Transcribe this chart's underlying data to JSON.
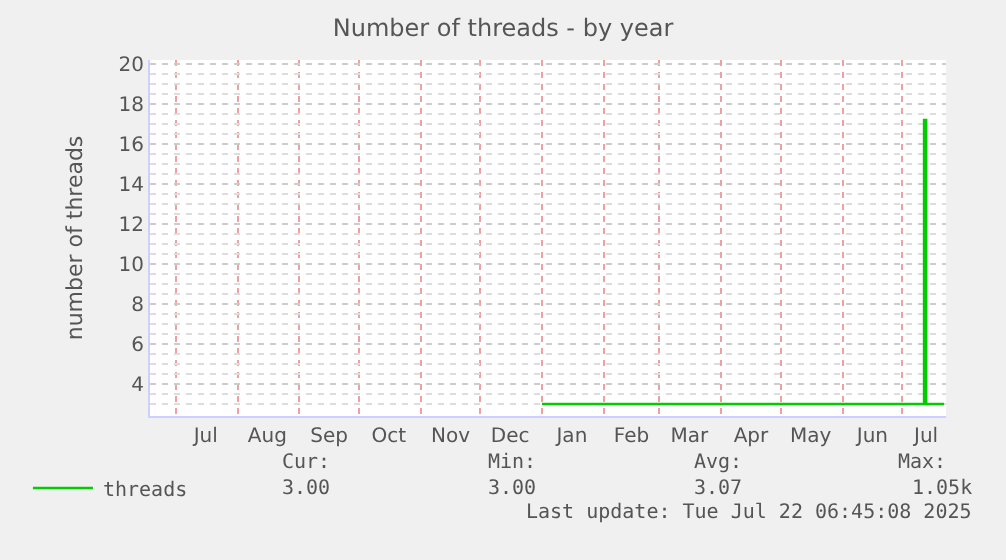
{
  "chart_data": {
    "type": "step",
    "title": "Number of threads - by year",
    "ylabel": "number of threads",
    "x": [
      "2025-01-01",
      "2025-07-12",
      "2025-07-13",
      "2025-07-22"
    ],
    "series": [
      {
        "name": "threads",
        "color": "#00cc00",
        "values": [
          3,
          17.2,
          3,
          3
        ]
      }
    ],
    "xlim": [
      "2024-06-18",
      "2025-07-23"
    ],
    "xticks": [
      {
        "value": "2024-07-01",
        "label": null
      },
      {
        "value": "2024-07-16",
        "label": "Jul"
      },
      {
        "value": "2024-08-01",
        "label": null
      },
      {
        "value": "2024-08-16",
        "label": "Aug"
      },
      {
        "value": "2024-09-01",
        "label": null
      },
      {
        "value": "2024-09-16",
        "label": "Sep"
      },
      {
        "value": "2024-10-01",
        "label": null
      },
      {
        "value": "2024-10-16",
        "label": "Oct"
      },
      {
        "value": "2024-11-01",
        "label": null
      },
      {
        "value": "2024-11-16",
        "label": "Nov"
      },
      {
        "value": "2024-12-01",
        "label": null
      },
      {
        "value": "2024-12-16",
        "label": "Dec"
      },
      {
        "value": "2025-01-01",
        "label": null
      },
      {
        "value": "2025-01-16",
        "label": "Jan"
      },
      {
        "value": "2025-02-01",
        "label": null
      },
      {
        "value": "2025-02-15",
        "label": "Feb"
      },
      {
        "value": "2025-03-01",
        "label": null
      },
      {
        "value": "2025-03-16",
        "label": "Mar"
      },
      {
        "value": "2025-04-01",
        "label": null
      },
      {
        "value": "2025-04-16",
        "label": "Apr"
      },
      {
        "value": "2025-05-01",
        "label": null
      },
      {
        "value": "2025-05-16",
        "label": "May"
      },
      {
        "value": "2025-06-01",
        "label": null
      },
      {
        "value": "2025-06-16",
        "label": "Jun"
      },
      {
        "value": "2025-07-01",
        "label": null
      },
      {
        "value": "2025-07-13",
        "label": "Jul"
      }
    ],
    "ylim": [
      2.4,
      20.2
    ],
    "yticks": [
      {
        "value": 2.5,
        "label": null
      },
      {
        "value": 3,
        "label": null
      },
      {
        "value": 3.5,
        "label": null
      },
      4,
      {
        "value": 4.5,
        "label": null
      },
      {
        "value": 5,
        "label": null
      },
      {
        "value": 5.5,
        "label": null
      },
      6,
      {
        "value": 6.5,
        "label": null
      },
      {
        "value": 7,
        "label": null
      },
      {
        "value": 7.5,
        "label": null
      },
      8,
      {
        "value": 8.5,
        "label": null
      },
      {
        "value": 9,
        "label": null
      },
      {
        "value": 9.5,
        "label": null
      },
      10,
      {
        "value": 10.5,
        "label": null
      },
      {
        "value": 11,
        "label": null
      },
      {
        "value": 11.5,
        "label": null
      },
      12,
      {
        "value": 12.5,
        "label": null
      },
      {
        "value": 13,
        "label": null
      },
      {
        "value": 13.5,
        "label": null
      },
      14,
      {
        "value": 14.5,
        "label": null
      },
      {
        "value": 15,
        "label": null
      },
      {
        "value": 15.5,
        "label": null
      },
      16,
      {
        "value": 16.5,
        "label": null
      },
      {
        "value": 17,
        "label": null
      },
      {
        "value": 17.5,
        "label": null
      },
      18,
      {
        "value": 18.5,
        "label": null
      },
      {
        "value": 19,
        "label": null
      },
      {
        "value": 19.5,
        "label": null
      },
      20
    ],
    "grid": true,
    "legend": "bottom left",
    "marker": "none",
    "line_style": "solid",
    "annotations": [
      "Cur:",
      "3.00",
      "Min:",
      "3.00",
      "Avg:",
      "3.07",
      "Max:",
      "1.05k",
      "Last update: Tue Jul 22 06:45:08 2025"
    ]
  }
}
